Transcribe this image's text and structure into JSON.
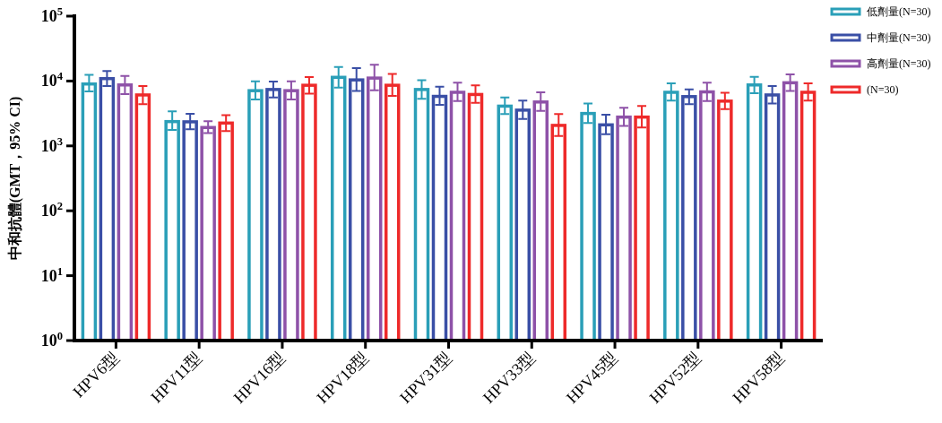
{
  "chart_data": {
    "type": "bar",
    "ylabel": "中和抗體(GMT，95% CI)",
    "log": "y",
    "categories": [
      "HPV6型",
      "HPV11型",
      "HPV16型",
      "HPV18型",
      "HPV31型",
      "HPV33型",
      "HPV45型",
      "HPV52型",
      "HPV58型"
    ],
    "ylim": [
      1,
      100000
    ],
    "yticks": [
      {
        "value": 1,
        "label": "10$^{0}$"
      },
      {
        "value": 10,
        "label": "10$^{1}$"
      },
      {
        "value": 100,
        "label": "10$^{2}$"
      },
      {
        "value": 1000,
        "label": "10$^{3}$"
      },
      {
        "value": 10000,
        "label": "10$^{4}$"
      },
      {
        "value": 100000,
        "label": "10$^{5}$"
      }
    ],
    "legend": "top right",
    "grid": false,
    "series": [
      {
        "name": "低劑量(N=30)",
        "color": "#2a9fb8",
        "values": [
          9000,
          2370,
          7100,
          11400,
          7400,
          4100,
          3160,
          6700,
          8700
        ],
        "errors": [
          [
            6900,
            12500
          ],
          [
            1760,
            3400
          ],
          [
            5200,
            9900
          ],
          [
            7900,
            16500
          ],
          [
            5300,
            10300
          ],
          [
            3100,
            5600
          ],
          [
            2250,
            4500
          ],
          [
            5000,
            9200
          ],
          [
            6500,
            11600
          ]
        ]
      },
      {
        "name": "中劑量(N=30)",
        "color": "#3a4fa6",
        "values": [
          10900,
          2350,
          7400,
          10400,
          5800,
          3560,
          2110,
          5750,
          6100
        ],
        "errors": [
          [
            8400,
            14200
          ],
          [
            1800,
            3130
          ],
          [
            5600,
            9800
          ],
          [
            7000,
            15800
          ],
          [
            4300,
            8200
          ],
          [
            2600,
            5000
          ],
          [
            1520,
            3030
          ],
          [
            4400,
            7400
          ],
          [
            4500,
            8400
          ]
        ]
      },
      {
        "name": "高劑量(N=30)",
        "color": "#8e52a8",
        "values": [
          8700,
          1920,
          7100,
          11100,
          6700,
          4750,
          2780,
          6800,
          9400
        ],
        "errors": [
          [
            6300,
            12000
          ],
          [
            1580,
            2400
          ],
          [
            5200,
            9900
          ],
          [
            7200,
            17800
          ],
          [
            4900,
            9400
          ],
          [
            3450,
            6700
          ],
          [
            2040,
            3880
          ],
          [
            4900,
            9400
          ],
          [
            7000,
            12700
          ]
        ]
      },
      {
        "name": "(N=30)",
        "color": "#ee2a2a",
        "values": [
          6100,
          2250,
          8600,
          8600,
          6200,
          2070,
          2780,
          4900,
          6700
        ],
        "errors": [
          [
            4400,
            8400
          ],
          [
            1690,
            2970
          ],
          [
            6400,
            11500
          ],
          [
            5900,
            12900
          ],
          [
            4600,
            8600
          ],
          [
            1420,
            3100
          ],
          [
            1920,
            4130
          ],
          [
            3700,
            6600
          ],
          [
            5000,
            9200
          ]
        ]
      }
    ]
  }
}
